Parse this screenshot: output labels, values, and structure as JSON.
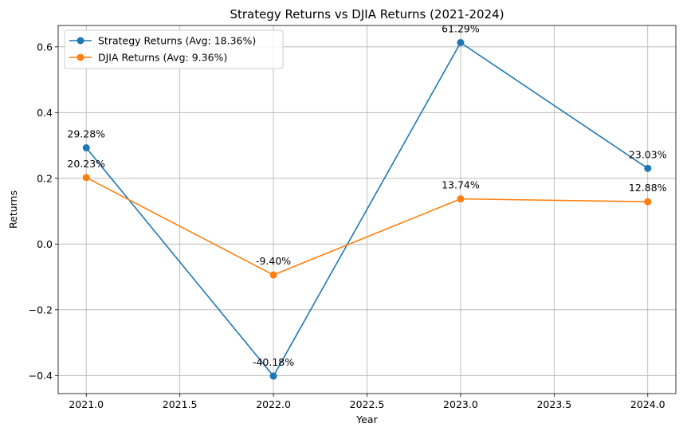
{
  "chart_data": {
    "type": "line",
    "title": "Strategy Returns vs DJIA Returns (2021-2024)",
    "xlabel": "Year",
    "ylabel": "Returns",
    "x": [
      2021,
      2022,
      2023,
      2024
    ],
    "xlim": [
      2020.85,
      2024.15
    ],
    "ylim": [
      -0.455,
      0.665
    ],
    "xticks": [
      2021.0,
      2021.5,
      2022.0,
      2022.5,
      2023.0,
      2023.5,
      2024.0
    ],
    "xtick_labels": [
      "2021.0",
      "2021.5",
      "2022.0",
      "2022.5",
      "2023.0",
      "2023.5",
      "2024.0"
    ],
    "yticks": [
      -0.4,
      -0.2,
      0.0,
      0.2,
      0.4,
      0.6
    ],
    "ytick_labels": [
      "−0.4",
      "−0.2",
      "0.0",
      "0.2",
      "0.4",
      "0.6"
    ],
    "grid": true,
    "legend_position": "top-left",
    "series": [
      {
        "name": "Strategy Returns (Avg: 18.36%)",
        "color": "#1f77b4",
        "values": [
          0.2928,
          -0.4018,
          0.6129,
          0.2303
        ],
        "labels": [
          "29.28%",
          "-40.18%",
          "61.29%",
          "23.03%"
        ]
      },
      {
        "name": "DJIA Returns (Avg: 9.36%)",
        "color": "#ff7f0e",
        "values": [
          0.2023,
          -0.094,
          0.1374,
          0.1288
        ],
        "labels": [
          "20.23%",
          "-9.40%",
          "13.74%",
          "12.88%"
        ]
      }
    ]
  }
}
